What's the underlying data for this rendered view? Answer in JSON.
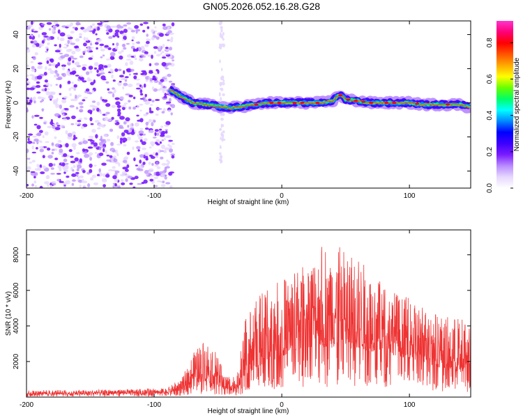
{
  "title": "GN05.2026.052.16.28.G28",
  "chart_data": [
    {
      "type": "heatmap",
      "xlabel": "Height of straight line (km)",
      "ylabel": "Frequency (Hz)",
      "xlim": [
        -200,
        148
      ],
      "ylim": [
        -50,
        48
      ],
      "xticks": [
        -200,
        -100,
        0,
        100
      ],
      "yticks": [
        -40,
        -20,
        0,
        20,
        40
      ],
      "colorbar": {
        "label": "Normalized spectral amplitude",
        "range": [
          0,
          0.92
        ],
        "ticks": [
          0.0,
          0.2,
          0.4,
          0.6,
          0.8
        ],
        "colors": [
          "#ffffff",
          "#e6d7ff",
          "#b98cff",
          "#7a1cff",
          "#3d00ff",
          "#0000ff",
          "#0088ff",
          "#00ffff",
          "#00ff66",
          "#66ff00",
          "#ffff00",
          "#ffaa00",
          "#ff5500",
          "#ff0000",
          "#ff0077",
          "#ff33cc"
        ]
      },
      "noise_region": {
        "x_from": -200,
        "x_to": -85,
        "freq_span": [
          -50,
          48
        ]
      },
      "artifact_column": {
        "x": -47,
        "freq_span": [
          -35,
          48
        ]
      },
      "ridge": [
        {
          "x": -88,
          "f": 8
        },
        {
          "x": -80,
          "f": 4
        },
        {
          "x": -70,
          "f": 0
        },
        {
          "x": -60,
          "f": -1
        },
        {
          "x": -50,
          "f": -2
        },
        {
          "x": -40,
          "f": -3
        },
        {
          "x": -30,
          "f": -2
        },
        {
          "x": -20,
          "f": -1
        },
        {
          "x": -10,
          "f": 0
        },
        {
          "x": 0,
          "f": 0
        },
        {
          "x": 10,
          "f": 0
        },
        {
          "x": 20,
          "f": 0
        },
        {
          "x": 30,
          "f": 0
        },
        {
          "x": 40,
          "f": 1
        },
        {
          "x": 45,
          "f": 5
        },
        {
          "x": 50,
          "f": 2
        },
        {
          "x": 60,
          "f": 1
        },
        {
          "x": 70,
          "f": 0
        },
        {
          "x": 80,
          "f": 0
        },
        {
          "x": 90,
          "f": 0
        },
        {
          "x": 100,
          "f": 0
        },
        {
          "x": 110,
          "f": -1
        },
        {
          "x": 120,
          "f": -1
        },
        {
          "x": 130,
          "f": -1
        },
        {
          "x": 140,
          "f": -1
        },
        {
          "x": 148,
          "f": -3
        }
      ]
    },
    {
      "type": "line",
      "xlabel": "Height of straight line (km)",
      "ylabel": "SNR (10 * v/v)",
      "xlim": [
        -200,
        148
      ],
      "ylim": [
        0,
        9400
      ],
      "xticks": [
        -200,
        -100,
        0,
        100
      ],
      "yticks": [
        2000,
        4000,
        6000,
        8000
      ],
      "color": "#ee3333",
      "envelope": [
        {
          "x": -200,
          "base": 150,
          "amp": 250
        },
        {
          "x": -150,
          "base": 150,
          "amp": 250
        },
        {
          "x": -90,
          "base": 200,
          "amp": 300
        },
        {
          "x": -78,
          "base": 400,
          "amp": 700
        },
        {
          "x": -70,
          "base": 800,
          "amp": 1600
        },
        {
          "x": -60,
          "base": 900,
          "amp": 2500
        },
        {
          "x": -52,
          "base": 700,
          "amp": 2000
        },
        {
          "x": -45,
          "base": 400,
          "amp": 900
        },
        {
          "x": -35,
          "base": 400,
          "amp": 800
        },
        {
          "x": -28,
          "base": 1300,
          "amp": 3300
        },
        {
          "x": -15,
          "base": 1800,
          "amp": 4200
        },
        {
          "x": 0,
          "base": 2300,
          "amp": 4300
        },
        {
          "x": 20,
          "base": 2800,
          "amp": 4800
        },
        {
          "x": 35,
          "base": 2800,
          "amp": 6200
        },
        {
          "x": 55,
          "base": 2700,
          "amp": 5500
        },
        {
          "x": 80,
          "base": 2500,
          "amp": 3800
        },
        {
          "x": 110,
          "base": 2000,
          "amp": 3200
        },
        {
          "x": 130,
          "base": 1500,
          "amp": 3000
        },
        {
          "x": 148,
          "base": 1300,
          "amp": 3300
        }
      ]
    }
  ]
}
